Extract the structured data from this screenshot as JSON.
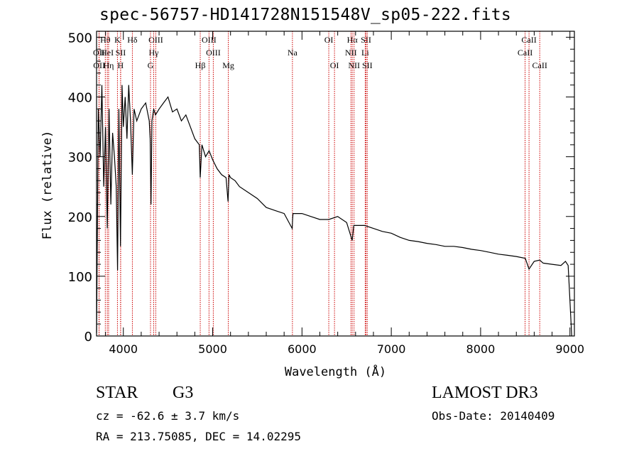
{
  "chart_data": {
    "type": "line",
    "title": "spec-56757-HD141728N151548V_sp05-222.fits",
    "xlabel": "Wavelength (Å)",
    "ylabel": "Flux (relative)",
    "xlim": [
      3700,
      9050
    ],
    "ylim": [
      0,
      510
    ],
    "xticks": [
      4000,
      5000,
      6000,
      7000,
      8000,
      9000
    ],
    "yticks": [
      0,
      100,
      200,
      300,
      400,
      500
    ],
    "xtick_labels": [
      "4000",
      "5000",
      "6000",
      "7000",
      "8000",
      "9000"
    ],
    "ytick_labels": [
      "0",
      "100",
      "200",
      "300",
      "400",
      "500"
    ],
    "series": [
      {
        "name": "spectrum",
        "x": [
          3700,
          3720,
          3740,
          3760,
          3780,
          3800,
          3820,
          3840,
          3860,
          3880,
          3900,
          3920,
          3935,
          3950,
          3968,
          3985,
          4000,
          4020,
          4040,
          4060,
          4080,
          4101,
          4120,
          4150,
          4200,
          4250,
          4290,
          4300,
          4310,
          4320,
          4340,
          4360,
          4400,
          4450,
          4500,
          4550,
          4600,
          4650,
          4700,
          4750,
          4800,
          4850,
          4861,
          4880,
          4920,
          4960,
          5000,
          5050,
          5100,
          5150,
          5172,
          5183,
          5200,
          5250,
          5300,
          5400,
          5500,
          5600,
          5700,
          5800,
          5890,
          5895,
          5900,
          5950,
          6000,
          6100,
          6200,
          6300,
          6400,
          6500,
          6562,
          6580,
          6600,
          6700,
          6800,
          6900,
          7000,
          7100,
          7200,
          7300,
          7400,
          7500,
          7600,
          7700,
          7800,
          7900,
          8000,
          8100,
          8200,
          8300,
          8400,
          8500,
          8542,
          8600,
          8662,
          8700,
          8800,
          8900,
          8950,
          8980,
          9000,
          9020
        ],
        "values": [
          5,
          380,
          300,
          420,
          250,
          350,
          180,
          380,
          220,
          340,
          300,
          250,
          110,
          380,
          150,
          420,
          350,
          400,
          330,
          420,
          360,
          270,
          380,
          360,
          380,
          390,
          360,
          330,
          220,
          360,
          380,
          370,
          380,
          390,
          400,
          375,
          380,
          360,
          370,
          350,
          330,
          320,
          265,
          320,
          300,
          310,
          295,
          280,
          270,
          265,
          225,
          270,
          265,
          260,
          250,
          240,
          230,
          215,
          210,
          205,
          180,
          195,
          205,
          205,
          205,
          200,
          195,
          195,
          200,
          190,
          160,
          185,
          185,
          185,
          180,
          175,
          172,
          165,
          160,
          158,
          155,
          153,
          150,
          150,
          148,
          145,
          143,
          140,
          137,
          135,
          133,
          130,
          112,
          125,
          127,
          122,
          120,
          118,
          125,
          118,
          60,
          0
        ]
      }
    ],
    "lines": [
      {
        "name": "OII",
        "wl": 3727,
        "row": 1
      },
      {
        "name": "OII",
        "wl": 3729,
        "row": 2
      },
      {
        "name": "Hθ",
        "wl": 3798,
        "row": 0
      },
      {
        "name": "HeI",
        "wl": 3820,
        "row": 1
      },
      {
        "name": "Hη",
        "wl": 3835,
        "row": 2
      },
      {
        "name": "K",
        "wl": 3934,
        "row": 0
      },
      {
        "name": "SII",
        "wl": 3970,
        "row": 1
      },
      {
        "name": "H",
        "wl": 3969,
        "row": 2
      },
      {
        "name": "Hδ",
        "wl": 4101,
        "row": 0
      },
      {
        "name": "OIII",
        "wl": 4363,
        "row": 0
      },
      {
        "name": "Hγ",
        "wl": 4340,
        "row": 1
      },
      {
        "name": "G",
        "wl": 4304,
        "row": 2
      },
      {
        "name": "OIII",
        "wl": 4959,
        "row": 0
      },
      {
        "name": "OIII",
        "wl": 5007,
        "row": 1
      },
      {
        "name": "Hβ",
        "wl": 4861,
        "row": 2
      },
      {
        "name": "Mg",
        "wl": 5175,
        "row": 2
      },
      {
        "name": "Na",
        "wl": 5893,
        "row": 1
      },
      {
        "name": "OI",
        "wl": 6300,
        "row": 0
      },
      {
        "name": "OI",
        "wl": 6364,
        "row": 2
      },
      {
        "name": "Hα",
        "wl": 6563,
        "row": 0
      },
      {
        "name": "NII",
        "wl": 6548,
        "row": 1
      },
      {
        "name": "NII",
        "wl": 6583,
        "row": 2
      },
      {
        "name": "SII",
        "wl": 6717,
        "row": 0
      },
      {
        "name": "Li",
        "wl": 6708,
        "row": 1
      },
      {
        "name": "SII",
        "wl": 6731,
        "row": 2
      },
      {
        "name": "CaII",
        "wl": 8542,
        "row": 0
      },
      {
        "name": "CaII",
        "wl": 8498,
        "row": 1
      },
      {
        "name": "CaII",
        "wl": 8662,
        "row": 2
      }
    ],
    "line_color": "#cc0000"
  },
  "info": {
    "object_class": "STAR",
    "subclass": "G3",
    "survey": "LAMOST DR3",
    "cz": "cz = -62.6 ± 3.7 km/s",
    "obs_date": "Obs-Date: 20140409",
    "coords": "RA = 213.75085, DEC =  14.02295"
  }
}
